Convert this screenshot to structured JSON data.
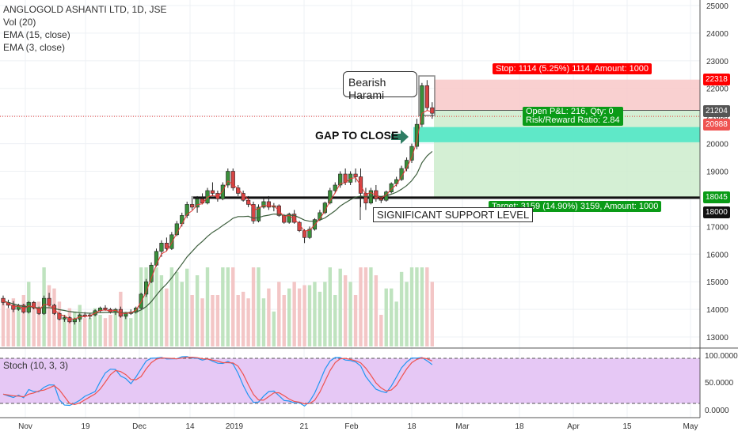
{
  "legend": {
    "title": "ANGLOGOLD ASHANTI LTD, 1D, JSE",
    "vol": "Vol (20)",
    "ema15": "EMA (15, close)",
    "ema3": "EMA (3, close)"
  },
  "stoch_label": "Stoch (10, 3, 3)",
  "annotations": {
    "stop": "Stop: 1114 (5.25%) 1114, Amount: 1000",
    "pnl": "Open P&L: 216, Qty: 0",
    "rr": "Risk/Reward Ratio: 2.84",
    "target": "Target: 3159 (14.90%) 3159, Amount: 1000",
    "harami": "Bearish Harami",
    "gap": "GAP TO CLOSE",
    "support": "SIGNIFICANT SUPPORT LEVEL"
  },
  "price_labels": {
    "p22318": "22318",
    "p21204": "21204",
    "p20988": "20988",
    "p18045": "18045",
    "p18000": "18000"
  },
  "colors": {
    "up": "#26a69a",
    "down": "#ef5350",
    "candle_up": "#3a8f3a",
    "candle_down": "#d64545",
    "ema15": "#3e5f3e",
    "ema3": "#e53935",
    "stop_zone": "#f8c8c8",
    "target_zone": "#cdeccd",
    "gap_zone": "#5fe8c8",
    "stoch_bg": "#e6c8f5"
  },
  "chart_data": [
    {
      "type": "candlestick",
      "title": "ANGLOGOLD ASHANTI LTD, 1D, JSE",
      "y_axis_ticks": [
        13000,
        14000,
        15000,
        16000,
        17000,
        18000,
        19000,
        20000,
        21000,
        22000,
        23000,
        24000,
        25000
      ],
      "x_axis_ticks": [
        "Nov",
        "19",
        "Dec",
        "14",
        "2019",
        "21",
        "Feb",
        "18",
        "Mar",
        "18",
        "Apr",
        "15",
        "May"
      ],
      "ylim": [
        12600,
        25200
      ],
      "horizontal_levels": [
        18045,
        18000
      ],
      "gap_zone": [
        20050,
        20600
      ],
      "stop_level": 22318,
      "entry_level": 21204,
      "target_level": 18045,
      "last_price": 20988,
      "candles": [
        [
          14400,
          14500,
          14150,
          14250
        ],
        [
          14250,
          14350,
          14050,
          14150
        ],
        [
          14150,
          14300,
          13900,
          14000
        ],
        [
          14000,
          14200,
          13950,
          14150
        ],
        [
          14150,
          14200,
          13850,
          13900
        ],
        [
          13900,
          14300,
          13850,
          14250
        ],
        [
          14250,
          14300,
          14000,
          14050
        ],
        [
          14050,
          14100,
          13800,
          13850
        ],
        [
          13850,
          14500,
          13800,
          14400
        ],
        [
          14400,
          14600,
          14100,
          14150
        ],
        [
          14150,
          14200,
          13800,
          13850
        ],
        [
          13850,
          13900,
          13600,
          13650
        ],
        [
          13650,
          13800,
          13550,
          13700
        ],
        [
          13700,
          13750,
          13500,
          13550
        ],
        [
          13550,
          13700,
          13450,
          13650
        ],
        [
          13650,
          13850,
          13550,
          13800
        ],
        [
          13800,
          13900,
          13700,
          13750
        ],
        [
          13750,
          13850,
          13650,
          13800
        ],
        [
          13800,
          14000,
          13750,
          13950
        ],
        [
          13950,
          14100,
          13900,
          14050
        ],
        [
          14050,
          14150,
          13950,
          14000
        ],
        [
          14000,
          14050,
          13850,
          13900
        ],
        [
          13900,
          14050,
          13800,
          14000
        ],
        [
          14000,
          14100,
          13700,
          13750
        ],
        [
          13750,
          13900,
          13650,
          13850
        ],
        [
          13850,
          14000,
          13800,
          13900
        ],
        [
          13900,
          14100,
          13850,
          14050
        ],
        [
          14050,
          14600,
          14000,
          14550
        ],
        [
          14550,
          15100,
          14450,
          15000
        ],
        [
          15000,
          15700,
          14950,
          15600
        ],
        [
          15600,
          16200,
          15550,
          16100
        ],
        [
          16100,
          16500,
          15900,
          16400
        ],
        [
          16400,
          16600,
          16100,
          16200
        ],
        [
          16200,
          16800,
          16150,
          16700
        ],
        [
          16700,
          17200,
          16650,
          17100
        ],
        [
          17100,
          17500,
          17000,
          17400
        ],
        [
          17400,
          17900,
          17300,
          17800
        ],
        [
          17800,
          18100,
          17600,
          17700
        ],
        [
          17700,
          18100,
          17500,
          18000
        ],
        [
          18000,
          18200,
          17800,
          17850
        ],
        [
          17850,
          18400,
          17800,
          18300
        ],
        [
          18300,
          18600,
          18100,
          18200
        ],
        [
          18200,
          18300,
          17900,
          18000
        ],
        [
          18000,
          18600,
          17950,
          18500
        ],
        [
          18500,
          19100,
          18400,
          19000
        ],
        [
          19000,
          19100,
          18300,
          18400
        ],
        [
          18400,
          18500,
          18100,
          18200
        ],
        [
          18200,
          18300,
          17900,
          17950
        ],
        [
          17950,
          18100,
          17700,
          17800
        ],
        [
          17800,
          17900,
          17100,
          17200
        ],
        [
          17200,
          17800,
          17150,
          17700
        ],
        [
          17700,
          18000,
          17650,
          17900
        ],
        [
          17900,
          18100,
          17600,
          17700
        ],
        [
          17700,
          17850,
          17550,
          17750
        ],
        [
          17750,
          17800,
          17350,
          17400
        ],
        [
          17400,
          17450,
          17100,
          17150
        ],
        [
          17150,
          17500,
          17100,
          17450
        ],
        [
          17450,
          17600,
          17100,
          17150
        ],
        [
          17150,
          17200,
          16800,
          16850
        ],
        [
          16850,
          16900,
          16400,
          16600
        ],
        [
          16600,
          17000,
          16550,
          16900
        ],
        [
          16900,
          17300,
          16850,
          17250
        ],
        [
          17250,
          17600,
          17200,
          17500
        ],
        [
          17500,
          17900,
          17450,
          17850
        ],
        [
          17850,
          18400,
          17800,
          18300
        ],
        [
          18300,
          18600,
          18200,
          18500
        ],
        [
          18500,
          19000,
          18400,
          18900
        ],
        [
          18900,
          19100,
          18500,
          18600
        ],
        [
          18600,
          19000,
          18500,
          18900
        ],
        [
          18900,
          19100,
          18600,
          18800
        ],
        [
          18800,
          19100,
          17700,
          18200
        ],
        [
          18200,
          18400,
          17600,
          17850
        ],
        [
          17850,
          18400,
          17800,
          18300
        ],
        [
          18300,
          18500,
          17900,
          18000
        ],
        [
          18000,
          18100,
          17850,
          17950
        ],
        [
          17950,
          18300,
          17900,
          18250
        ],
        [
          18250,
          18600,
          18200,
          18550
        ],
        [
          18550,
          18800,
          18450,
          18700
        ],
        [
          18700,
          19200,
          18650,
          19100
        ],
        [
          19100,
          19500,
          19000,
          19400
        ],
        [
          19400,
          20000,
          19300,
          19900
        ],
        [
          19900,
          20900,
          19800,
          20700
        ],
        [
          20700,
          22200,
          20600,
          22100
        ],
        [
          22100,
          22300,
          21200,
          21300
        ],
        [
          21300,
          21500,
          20900,
          21100
        ]
      ],
      "ema15": [
        14300,
        14250,
        14200,
        14150,
        14100,
        14100,
        14080,
        14050,
        14060,
        14060,
        14030,
        13990,
        13960,
        13920,
        13900,
        13880,
        13870,
        13860,
        13870,
        13880,
        13890,
        13890,
        13900,
        13880,
        13880,
        13880,
        13900,
        13980,
        14100,
        14280,
        14510,
        14740,
        14920,
        15140,
        15390,
        15640,
        15900,
        16100,
        16300,
        16460,
        16640,
        16790,
        16900,
        17040,
        17160,
        17300,
        17360,
        17360,
        17370,
        17300,
        17320,
        17380,
        17410,
        17450,
        17440,
        17400,
        17410,
        17400,
        17320,
        17230,
        17190,
        17190,
        17230,
        17310,
        17440,
        17570,
        17740,
        17860,
        17970,
        18060,
        18100,
        18070,
        18100,
        18100,
        18090,
        18110,
        18170,
        18240,
        18350,
        18480,
        18660,
        18910,
        19310,
        19560,
        19720
      ],
      "ema3": [
        14300,
        14220,
        14100,
        14120,
        14000,
        14130,
        14090,
        13960,
        14180,
        14160,
        14000,
        13820,
        13760,
        13650,
        13650,
        13730,
        13740,
        13770,
        13860,
        13960,
        13980,
        13940,
        13970,
        13860,
        13850,
        13880,
        13970,
        14270,
        14640,
        15130,
        15620,
        16010,
        16110,
        16410,
        16760,
        17080,
        17440,
        17570,
        17790,
        17820,
        18060,
        18130,
        18070,
        18290,
        18650,
        18520,
        18360,
        18150,
        17980,
        17590,
        17650,
        17770,
        17740,
        17750,
        17570,
        17360,
        17400,
        17280,
        17070,
        16830,
        16870,
        17060,
        17280,
        17560,
        17930,
        18220,
        18560,
        18580,
        18740,
        18770,
        18480,
        18170,
        18230,
        18120,
        18030,
        18140,
        18350,
        18520,
        18810,
        19110,
        19500,
        20100,
        21100,
        21200,
        21150
      ],
      "stoch_ticks": [
        "100.0000",
        "50.0000",
        "0.0000"
      ]
    }
  ]
}
